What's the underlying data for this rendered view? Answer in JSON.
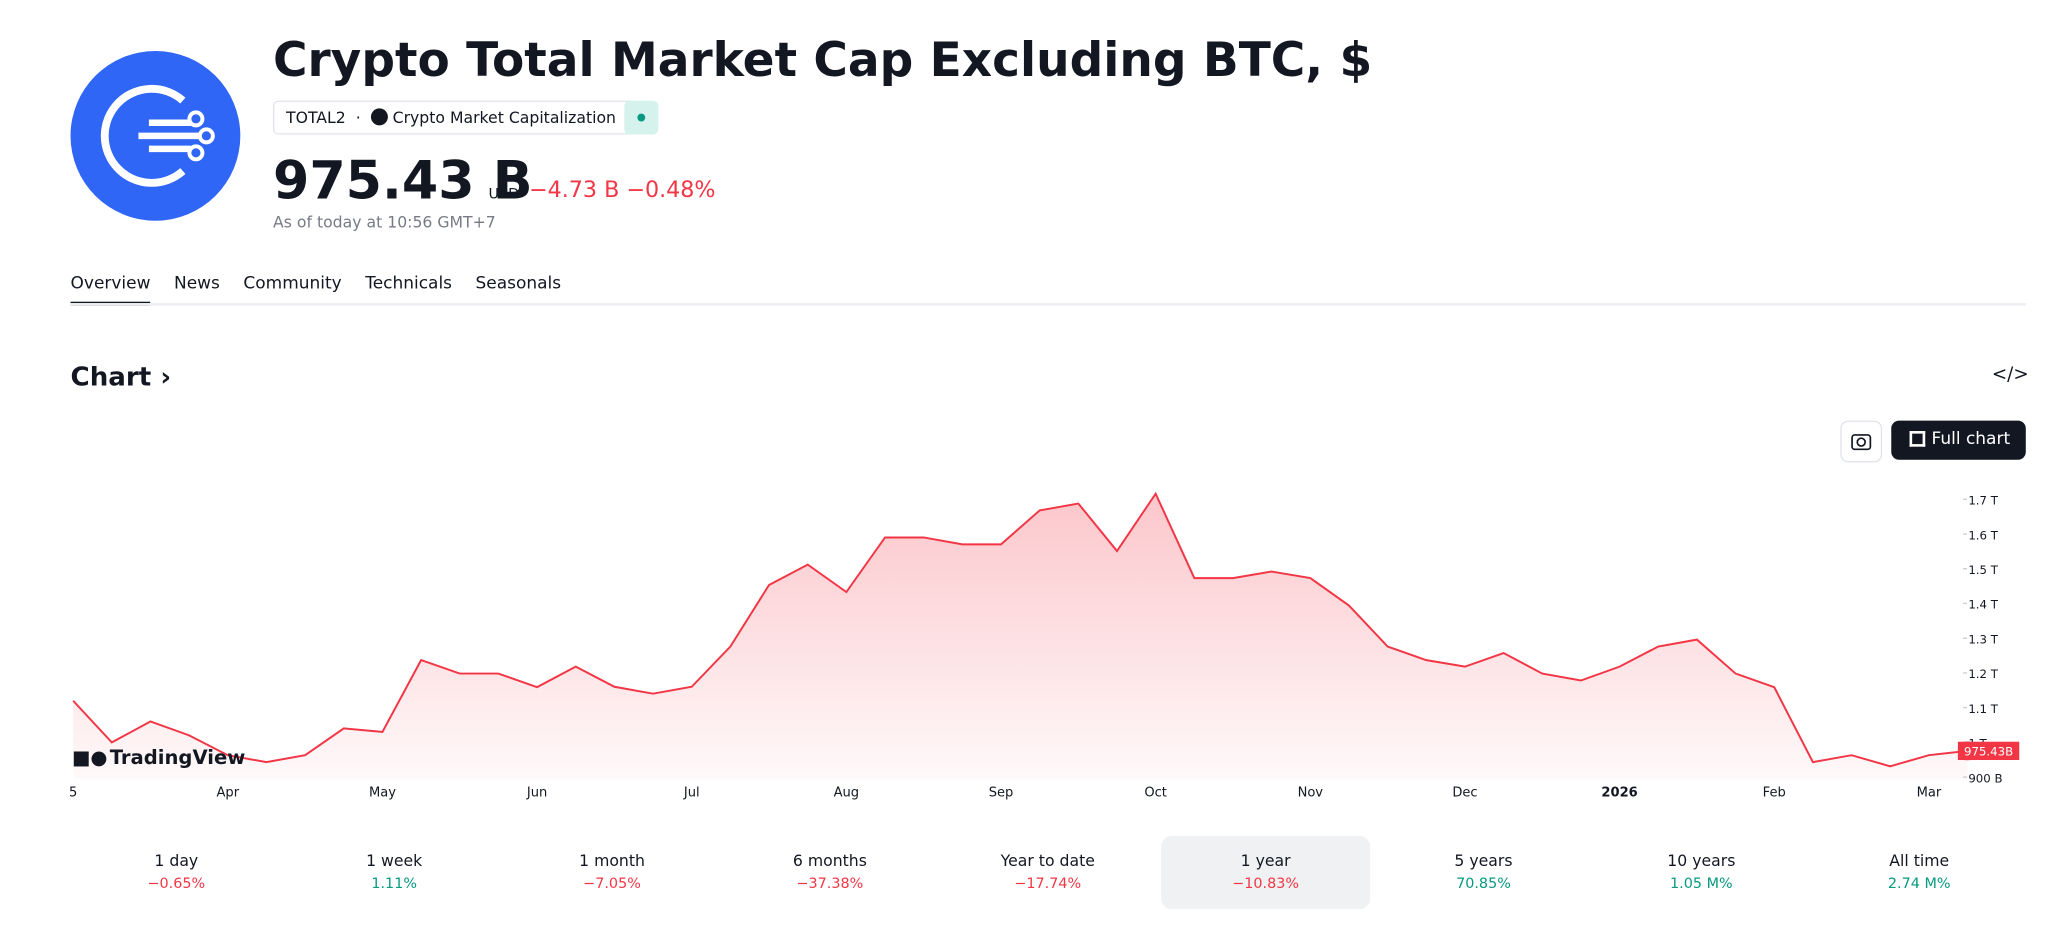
{
  "header": {
    "title": "Crypto Total Market Cap Excluding BTC, $",
    "symbol": "TOTAL2",
    "source": "Crypto Market Capitalization",
    "price": "975.43 B",
    "currency": "USD",
    "change": "−4.73 B",
    "change_percent": "−0.48%",
    "as_of": "As of today at 10:56 GMT+7"
  },
  "tabs": [
    "Overview",
    "News",
    "Community",
    "Technicals",
    "Seasonals"
  ],
  "section_title": "Chart",
  "full_chart_button": "Full chart",
  "chart_data": {
    "type": "line",
    "watermark": "TradingView",
    "categories": [
      "5",
      null,
      null,
      null,
      "Apr",
      null,
      null,
      null,
      "May",
      null,
      null,
      null,
      "Jun",
      null,
      null,
      null,
      "Jul",
      null,
      null,
      null,
      "Aug",
      null,
      null,
      null,
      "Sep",
      null,
      null,
      null,
      "Oct",
      null,
      null,
      null,
      "Nov",
      null,
      null,
      null,
      "Dec",
      null,
      null,
      null,
      "2026",
      null,
      null,
      null,
      "Feb",
      null,
      null,
      null,
      "Mar",
      null
    ],
    "series": [
      {
        "color": "#f23645",
        "values": [
          1120,
          1000,
          1060,
          1020,
          963,
          943,
          963,
          1040,
          1030,
          1237,
          1198,
          1198,
          1159,
          1218,
          1160,
          1140,
          1160,
          1276,
          1453,
          1512,
          1433,
          1590,
          1590,
          1570,
          1570,
          1668,
          1688,
          1551,
          1716,
          1473,
          1473,
          1492,
          1473,
          1394,
          1276,
          1237,
          1218,
          1257,
          1198,
          1178,
          1218,
          1276,
          1296,
          1198,
          1159,
          943,
          963,
          931,
          963,
          975.43
        ]
      }
    ],
    "last_value_label": "975.43B",
    "ylim": [
      896,
      1750
    ],
    "yticks": [
      {
        "value": 900,
        "label": "900 B"
      },
      {
        "value": 1000,
        "label": "1 T"
      },
      {
        "value": 1100,
        "label": "1.1 T"
      },
      {
        "value": 1200,
        "label": "1.2 T"
      },
      {
        "value": 1300,
        "label": "1.3 T"
      },
      {
        "value": 1400,
        "label": "1.4 T"
      },
      {
        "value": 1500,
        "label": "1.5 T"
      },
      {
        "value": 1600,
        "label": "1.6 T"
      },
      {
        "value": 1700,
        "label": "1.7 T"
      }
    ]
  },
  "periods": [
    {
      "label": "1 day",
      "change": "−0.65%"
    },
    {
      "label": "1 week",
      "change": "1.11%"
    },
    {
      "label": "1 month",
      "change": "−7.05%"
    },
    {
      "label": "6 months",
      "change": "−37.38%"
    },
    {
      "label": "Year to date",
      "change": "−17.74%"
    },
    {
      "label": "1 year",
      "change": "−10.83%"
    },
    {
      "label": "5 years",
      "change": "70.85%"
    },
    {
      "label": "10 years",
      "change": "1.05 M%"
    },
    {
      "label": "All time",
      "change": "2.74 M%"
    }
  ]
}
